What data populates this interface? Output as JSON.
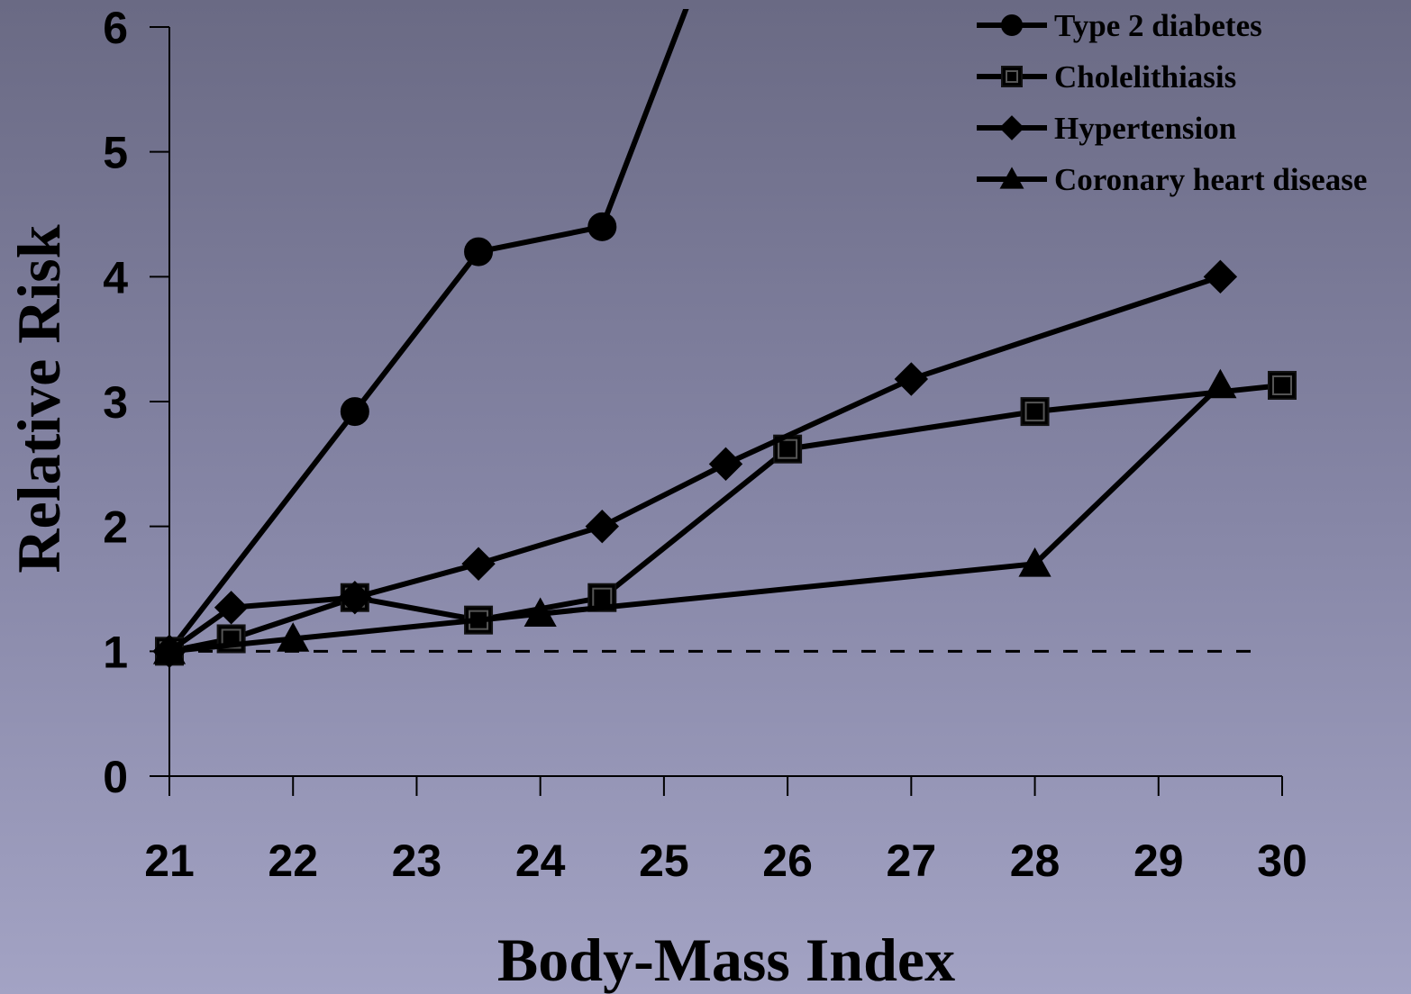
{
  "chart_data": {
    "type": "line",
    "xlabel": "Body-Mass Index",
    "ylabel": "Relative Risk",
    "xlim": [
      21,
      30
    ],
    "ylim": [
      0,
      6
    ],
    "x_ticks": [
      "21",
      "22",
      "23",
      "24",
      "25",
      "26",
      "27",
      "28",
      "29",
      "30"
    ],
    "y_ticks": [
      "0",
      "1",
      "2",
      "3",
      "4",
      "5",
      "6"
    ],
    "reference_line": {
      "y": 1,
      "style": "dashed"
    },
    "legend_position": "top-right",
    "grid": false,
    "series": [
      {
        "name": "Type 2 diabetes",
        "marker": "circle",
        "x": [
          21,
          22.5,
          23.5,
          24.5,
          25.2
        ],
        "y": [
          1,
          2.92,
          4.2,
          4.4,
          6.2
        ]
      },
      {
        "name": "Cholelithiasis",
        "marker": "square",
        "x": [
          21,
          21.5,
          22.5,
          23.5,
          24.5,
          26,
          28,
          30
        ],
        "y": [
          1,
          1.1,
          1.43,
          1.25,
          1.43,
          2.62,
          2.92,
          3.13
        ]
      },
      {
        "name": "Hypertension",
        "marker": "diamond",
        "x": [
          21,
          21.5,
          22.5,
          23.5,
          24.5,
          25.5,
          27,
          29.5
        ],
        "y": [
          1,
          1.35,
          1.43,
          1.7,
          2.0,
          2.5,
          3.18,
          4.0
        ]
      },
      {
        "name": "Coronary heart disease",
        "marker": "triangle",
        "x": [
          21,
          22,
          24,
          28,
          29.5
        ],
        "y": [
          1,
          1.1,
          1.3,
          1.7,
          3.13
        ]
      }
    ]
  }
}
